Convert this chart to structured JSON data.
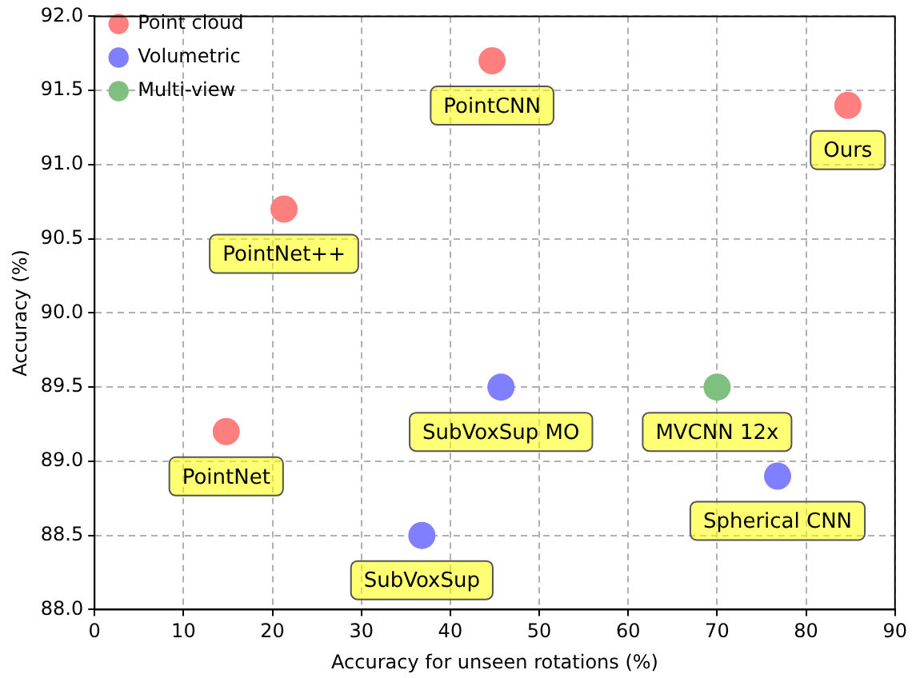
{
  "chart_data": {
    "type": "scatter",
    "xlabel": "Accuracy for unseen rotations (%)",
    "ylabel": "Accuracy (%)",
    "xlim": [
      0,
      90
    ],
    "xticks": [
      0,
      10,
      20,
      30,
      40,
      50,
      60,
      70,
      80,
      90
    ],
    "ylim": [
      88.0,
      92.0
    ],
    "yticks": [
      {
        "value": 88,
        "label": "88.0"
      },
      88.5,
      {
        "value": 89,
        "label": "89.0"
      },
      89.5,
      {
        "value": 90,
        "label": "90.0"
      },
      90.5,
      {
        "value": 91,
        "label": "91.0"
      },
      91.5,
      {
        "value": 92,
        "label": "92.0"
      }
    ],
    "grid": true,
    "legend": "top left",
    "marker": "circle",
    "series": [
      {
        "name": "Point cloud",
        "color": "#ff7f7f",
        "x": [
          14.8,
          21.3,
          44.7,
          84.7
        ],
        "values": [
          89.2,
          90.7,
          91.7,
          91.4
        ]
      },
      {
        "name": "Volumetric",
        "color": "#7f7fff",
        "x": [
          36.8,
          45.7,
          76.8
        ],
        "values": [
          88.5,
          89.5,
          88.9
        ]
      },
      {
        "name": "Multi-view",
        "color": "#7fbf7f",
        "x": [
          70.0
        ],
        "values": [
          89.5
        ]
      }
    ],
    "annotations": [
      {
        "text": "PointNet",
        "x": 14.8,
        "y": 89.2
      },
      {
        "text": "PointNet++",
        "x": 21.3,
        "y": 90.7
      },
      {
        "text": "PointCNN",
        "x": 44.7,
        "y": 91.7
      },
      {
        "text": "Ours",
        "x": 84.7,
        "y": 91.4
      },
      {
        "text": "SubVoxSup",
        "x": 36.8,
        "y": 88.5
      },
      {
        "text": "SubVoxSup MO",
        "x": 45.7,
        "y": 89.5
      },
      {
        "text": "Spherical CNN",
        "x": 76.8,
        "y": 88.9
      },
      {
        "text": "MVCNN 12x",
        "x": 70.0,
        "y": 89.5
      }
    ]
  }
}
